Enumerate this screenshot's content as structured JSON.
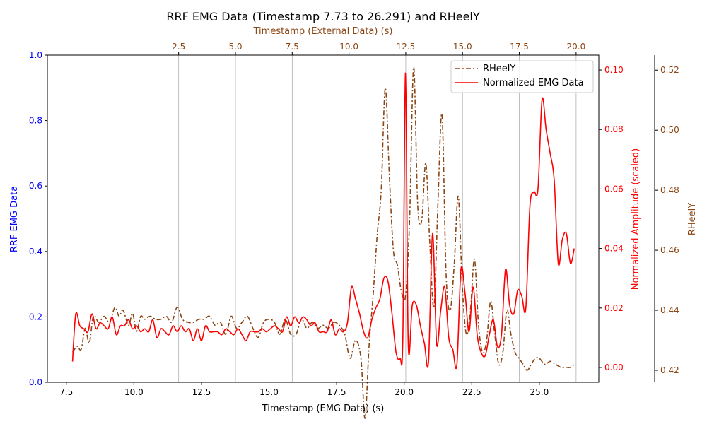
{
  "chart_data": {
    "type": "line",
    "title": "RRF EMG Data (Timestamp 7.73 to 26.291) and RHeelY",
    "xlabel": "Timestamp (EMG Data) (s)",
    "x_top_label": "Timestamp (External Data) (s)",
    "ylabel_left": "RRF EMG Data",
    "ylabel_right": "Normalized Amplitude (scaled)",
    "ylabel_right2": "RHeelY",
    "xlim": [
      6.8,
      27.2
    ],
    "x_top_lim": [
      -3.28,
      21.0
    ],
    "ylim_left": [
      0,
      1
    ],
    "ylim_right": [
      -0.005,
      0.105
    ],
    "ylim_right2": [
      0.416,
      0.525
    ],
    "x_ticks": [
      "7.5",
      "10.0",
      "12.5",
      "15.0",
      "17.5",
      "20.0",
      "22.5",
      "25.0"
    ],
    "x_tick_values": [
      7.5,
      10.0,
      12.5,
      15.0,
      17.5,
      20.0,
      22.5,
      25.0
    ],
    "x_top_ticks": [
      "2.5",
      "5.0",
      "7.5",
      "10.0",
      "12.5",
      "15.0",
      "17.5",
      "20.0"
    ],
    "x_top_tick_values": [
      2.5,
      5.0,
      7.5,
      10.0,
      12.5,
      15.0,
      17.5,
      20.0
    ],
    "y_left_ticks": [
      "0.0",
      "0.2",
      "0.4",
      "0.6",
      "0.8",
      "1.0"
    ],
    "y_left_tick_values": [
      0,
      0.2,
      0.4,
      0.6,
      0.8,
      1.0
    ],
    "y_right_ticks": [
      "0.00",
      "0.02",
      "0.04",
      "0.06",
      "0.08",
      "0.10"
    ],
    "y_right_tick_values": [
      0,
      0.02,
      0.04,
      0.06,
      0.08,
      0.1
    ],
    "y_right2_ticks": [
      "0.42",
      "0.44",
      "0.46",
      "0.48",
      "0.50",
      "0.52"
    ],
    "y_right2_tick_values": [
      0.42,
      0.44,
      0.46,
      0.48,
      0.5,
      0.52
    ],
    "vertical_grid_top_x": [
      2.5,
      5.0,
      7.5,
      10.0,
      12.5,
      15.0,
      17.5,
      20.0
    ],
    "legend_position": "top-right",
    "colors": {
      "left_axis": "#0000ff",
      "right_axis": "#ff0000",
      "right2_axis": "#8b4513",
      "grid": "#b0b0b0"
    },
    "series": [
      {
        "name": "RHeelY",
        "axis": "right2",
        "color": "#8b4513",
        "style": "dashdot",
        "x": [
          7.73,
          7.9,
          8.05,
          8.2,
          8.35,
          8.5,
          8.7,
          8.9,
          9.1,
          9.3,
          9.45,
          9.6,
          9.8,
          9.95,
          10.1,
          10.25,
          10.4,
          10.6,
          10.8,
          11.0,
          11.2,
          11.4,
          11.6,
          11.8,
          12.0,
          12.2,
          12.4,
          12.6,
          12.8,
          13.0,
          13.2,
          13.4,
          13.6,
          13.8,
          14.0,
          14.2,
          14.4,
          14.6,
          14.8,
          15.0,
          15.2,
          15.4,
          15.6,
          15.8,
          16.0,
          16.2,
          16.4,
          16.6,
          16.8,
          17.0,
          17.2,
          17.4,
          17.6,
          17.8,
          18.0,
          18.2,
          18.4,
          18.55,
          18.7,
          18.85,
          19.0,
          19.15,
          19.3,
          19.45,
          19.6,
          19.75,
          19.9,
          20.05,
          20.2,
          20.35,
          20.5,
          20.65,
          20.8,
          20.95,
          21.1,
          21.25,
          21.4,
          21.55,
          21.7,
          21.85,
          22.0,
          22.15,
          22.3,
          22.45,
          22.6,
          22.75,
          22.9,
          23.05,
          23.2,
          23.35,
          23.5,
          23.65,
          23.8,
          23.95,
          24.1,
          24.25,
          24.4,
          24.55,
          24.7,
          24.85,
          25.0,
          25.2,
          25.4,
          25.6,
          25.8,
          26.0,
          26.15,
          26.291
        ],
        "values": [
          0.426,
          0.428,
          0.427,
          0.434,
          0.429,
          0.438,
          0.436,
          0.438,
          0.436,
          0.441,
          0.438,
          0.44,
          0.435,
          0.439,
          0.433,
          0.438,
          0.437,
          0.438,
          0.437,
          0.437,
          0.438,
          0.436,
          0.441,
          0.437,
          0.436,
          0.436,
          0.437,
          0.437,
          0.438,
          0.435,
          0.436,
          0.432,
          0.438,
          0.434,
          0.436,
          0.438,
          0.434,
          0.431,
          0.436,
          0.437,
          0.436,
          0.432,
          0.437,
          0.432,
          0.432,
          0.437,
          0.434,
          0.436,
          0.434,
          0.435,
          0.434,
          0.436,
          0.435,
          0.432,
          0.424,
          0.43,
          0.424,
          0.404,
          0.428,
          0.445,
          0.465,
          0.48,
          0.514,
          0.485,
          0.46,
          0.455,
          0.446,
          0.445,
          0.47,
          0.521,
          0.475,
          0.47,
          0.489,
          0.462,
          0.441,
          0.476,
          0.505,
          0.452,
          0.44,
          0.455,
          0.478,
          0.448,
          0.432,
          0.44,
          0.457,
          0.435,
          0.426,
          0.43,
          0.443,
          0.432,
          0.422,
          0.426,
          0.44,
          0.432,
          0.426,
          0.424,
          0.422,
          0.42,
          0.422,
          0.424,
          0.424,
          0.422,
          0.423,
          0.422,
          0.421,
          0.421,
          0.421,
          0.422
        ]
      },
      {
        "name": "Normalized EMG Data",
        "axis": "right",
        "color": "#ff0000",
        "style": "solid",
        "x": [
          7.73,
          7.85,
          8.0,
          8.15,
          8.3,
          8.45,
          8.6,
          8.75,
          8.9,
          9.05,
          9.2,
          9.35,
          9.5,
          9.65,
          9.8,
          9.95,
          10.1,
          10.25,
          10.4,
          10.55,
          10.7,
          10.85,
          11.0,
          11.15,
          11.3,
          11.45,
          11.6,
          11.75,
          11.9,
          12.05,
          12.2,
          12.35,
          12.5,
          12.65,
          12.8,
          12.95,
          13.1,
          13.25,
          13.4,
          13.55,
          13.7,
          13.85,
          14.0,
          14.15,
          14.3,
          14.45,
          14.6,
          14.75,
          14.9,
          15.05,
          15.2,
          15.35,
          15.5,
          15.65,
          15.8,
          15.95,
          16.1,
          16.25,
          16.4,
          16.55,
          16.7,
          16.85,
          17.0,
          17.15,
          17.3,
          17.45,
          17.6,
          17.75,
          17.9,
          18.05,
          18.2,
          18.35,
          18.5,
          18.65,
          18.8,
          18.95,
          19.1,
          19.25,
          19.4,
          19.55,
          19.7,
          19.85,
          19.95,
          20.05,
          20.15,
          20.3,
          20.45,
          20.6,
          20.75,
          20.9,
          21.05,
          21.2,
          21.35,
          21.5,
          21.65,
          21.8,
          21.95,
          22.1,
          22.25,
          22.4,
          22.55,
          22.7,
          22.85,
          23.0,
          23.15,
          23.3,
          23.45,
          23.6,
          23.75,
          23.9,
          24.05,
          24.2,
          24.35,
          24.5,
          24.65,
          24.8,
          24.95,
          25.1,
          25.25,
          25.4,
          25.55,
          25.7,
          25.85,
          26.0,
          26.15,
          26.291
        ],
        "values": [
          0.002,
          0.018,
          0.014,
          0.013,
          0.012,
          0.018,
          0.013,
          0.015,
          0.014,
          0.013,
          0.017,
          0.011,
          0.014,
          0.014,
          0.016,
          0.013,
          0.014,
          0.012,
          0.013,
          0.012,
          0.016,
          0.01,
          0.013,
          0.012,
          0.011,
          0.014,
          0.012,
          0.014,
          0.012,
          0.013,
          0.009,
          0.013,
          0.009,
          0.014,
          0.012,
          0.012,
          0.012,
          0.011,
          0.013,
          0.012,
          0.011,
          0.013,
          0.011,
          0.009,
          0.012,
          0.012,
          0.012,
          0.013,
          0.012,
          0.013,
          0.014,
          0.013,
          0.012,
          0.017,
          0.014,
          0.017,
          0.015,
          0.017,
          0.016,
          0.014,
          0.015,
          0.012,
          0.012,
          0.012,
          0.016,
          0.011,
          0.013,
          0.012,
          0.015,
          0.027,
          0.023,
          0.018,
          0.012,
          0.01,
          0.016,
          0.02,
          0.023,
          0.03,
          0.029,
          0.018,
          0.005,
          0.003,
          0.01,
          0.099,
          0.008,
          0.021,
          0.021,
          0.014,
          0.008,
          0.002,
          0.045,
          0.008,
          0.019,
          0.027,
          0.01,
          0.006,
          0.001,
          0.033,
          0.025,
          0.012,
          0.027,
          0.011,
          0.005,
          0.004,
          0.011,
          0.016,
          0.007,
          0.011,
          0.033,
          0.021,
          0.018,
          0.026,
          0.024,
          0.02,
          0.054,
          0.059,
          0.06,
          0.09,
          0.08,
          0.072,
          0.063,
          0.035,
          0.043,
          0.045,
          0.035,
          0.04
        ]
      }
    ]
  }
}
